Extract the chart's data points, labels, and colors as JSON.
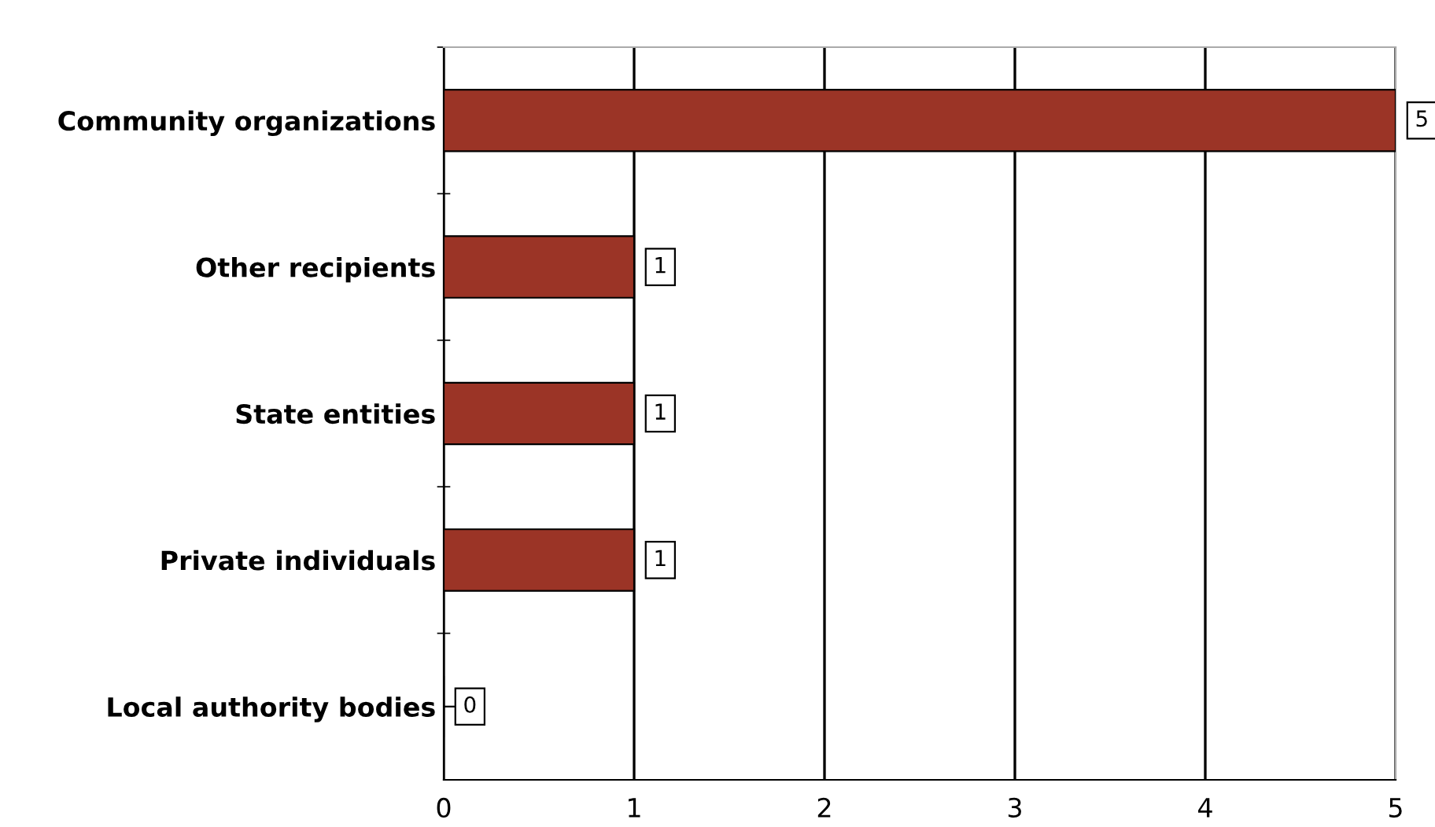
{
  "chart_data": {
    "type": "bar",
    "orientation": "horizontal",
    "categories": [
      "Community organizations",
      "Other recipients",
      "State entities",
      "Private individuals",
      "Local authority bodies"
    ],
    "values": [
      5,
      1,
      1,
      1,
      0
    ],
    "color": "#9b3426",
    "xlim": [
      0,
      5
    ],
    "xticks": [
      0,
      1,
      2,
      3,
      4,
      5
    ],
    "grid": "x",
    "data_labels": true
  }
}
